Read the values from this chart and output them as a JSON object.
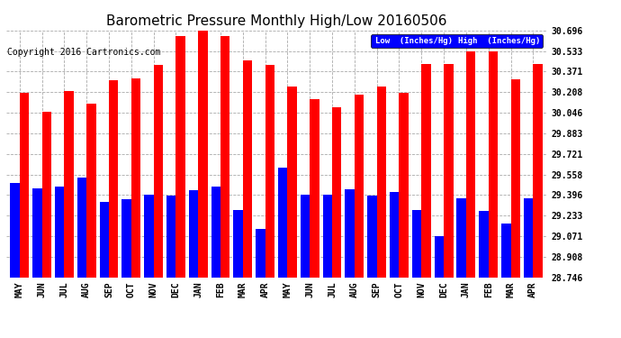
{
  "title": "Barometric Pressure Monthly High/Low 20160506",
  "copyright": "Copyright 2016 Cartronics.com",
  "legend_low": "Low  (Inches/Hg)",
  "legend_high": "High  (Inches/Hg)",
  "months": [
    "MAY",
    "JUN",
    "JUL",
    "AUG",
    "SEP",
    "OCT",
    "NOV",
    "DEC",
    "JAN",
    "FEB",
    "MAR",
    "APR",
    "MAY",
    "JUN",
    "JUL",
    "AUG",
    "SEP",
    "OCT",
    "NOV",
    "DEC",
    "JAN",
    "FEB",
    "MAR",
    "APR"
  ],
  "high_values": [
    30.2,
    30.05,
    30.22,
    30.12,
    30.3,
    30.32,
    30.42,
    30.65,
    30.71,
    30.65,
    30.46,
    30.42,
    30.25,
    30.15,
    30.09,
    30.19,
    30.25,
    30.2,
    30.43,
    30.43,
    30.53,
    30.53,
    30.31,
    30.43
  ],
  "low_values": [
    29.49,
    29.45,
    29.46,
    29.53,
    29.34,
    29.36,
    29.4,
    29.39,
    29.43,
    29.46,
    29.28,
    29.13,
    29.61,
    29.4,
    29.4,
    29.44,
    29.39,
    29.42,
    29.28,
    29.07,
    29.37,
    29.27,
    29.17,
    29.37
  ],
  "ylim_min": 28.746,
  "ylim_max": 30.696,
  "yticks": [
    28.746,
    28.908,
    29.071,
    29.233,
    29.396,
    29.558,
    29.721,
    29.883,
    30.046,
    30.208,
    30.371,
    30.533,
    30.696
  ],
  "bar_width": 0.42,
  "high_color": "#FF0000",
  "low_color": "#0000FF",
  "bg_color": "#FFFFFF",
  "grid_color": "#AAAAAA",
  "title_fontsize": 11,
  "tick_fontsize": 7,
  "copyright_fontsize": 7
}
